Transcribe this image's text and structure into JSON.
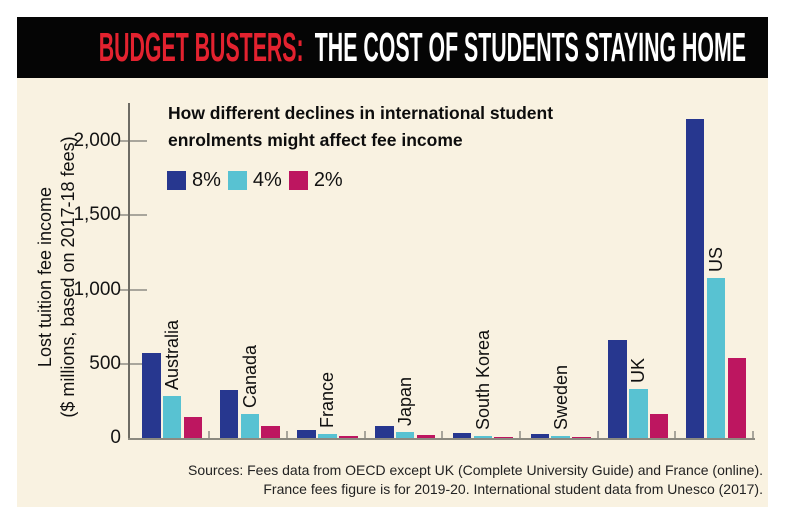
{
  "header": {
    "title_red": "BUDGET BUSTERS:",
    "title_main": "THE COST OF STUDENTS STAYING HOME"
  },
  "chart": {
    "subtitle_line1": "How different declines in international student",
    "subtitle_line2": "enrolments might affect fee income"
  },
  "chart_data": {
    "type": "bar",
    "title": "How different declines in international student enrolments might affect fee income",
    "categories": [
      "Australia",
      "Canada",
      "France",
      "Japan",
      "South Korea",
      "Sweden",
      "UK",
      "US"
    ],
    "series": [
      {
        "name": "8%",
        "color": "#27378f",
        "values": [
          572,
          325,
          54,
          84,
          33,
          30,
          660,
          2150
        ]
      },
      {
        "name": "4%",
        "color": "#58c2d2",
        "values": [
          286,
          163,
          27,
          42,
          17,
          15,
          330,
          1075
        ]
      },
      {
        "name": "2%",
        "color": "#bd1660",
        "values": [
          143,
          81,
          14,
          21,
          8,
          8,
          165,
          538
        ]
      }
    ],
    "ylabel_line1": "Lost tuition fee income",
    "ylabel_line2": "($ millions, based on 2017-18 fees)",
    "yticks": [
      0,
      500,
      1000,
      1500,
      2000
    ],
    "ytick_labels": [
      "0",
      "500",
      "1,000",
      "1,500",
      "2,000"
    ],
    "ylim": [
      0,
      2250
    ],
    "grid": false,
    "legend_position": "top-left"
  },
  "footer": {
    "source_line1": "Sources: Fees data from OECD except UK (Complete University Guide) and France (online).",
    "source_line2": "France fees figure is for 2019-20. International student data from Unesco (2017)."
  },
  "colors": {
    "header_bg": "#050505",
    "title_accent": "#e3222f",
    "title_text": "#ffffff",
    "panel_bg": "#f9f2e1",
    "series_8pct": "#27378f",
    "series_4pct": "#58c2d2",
    "series_2pct": "#bd1660",
    "axis": "#6e6c64",
    "tick": "#a9a69c"
  }
}
